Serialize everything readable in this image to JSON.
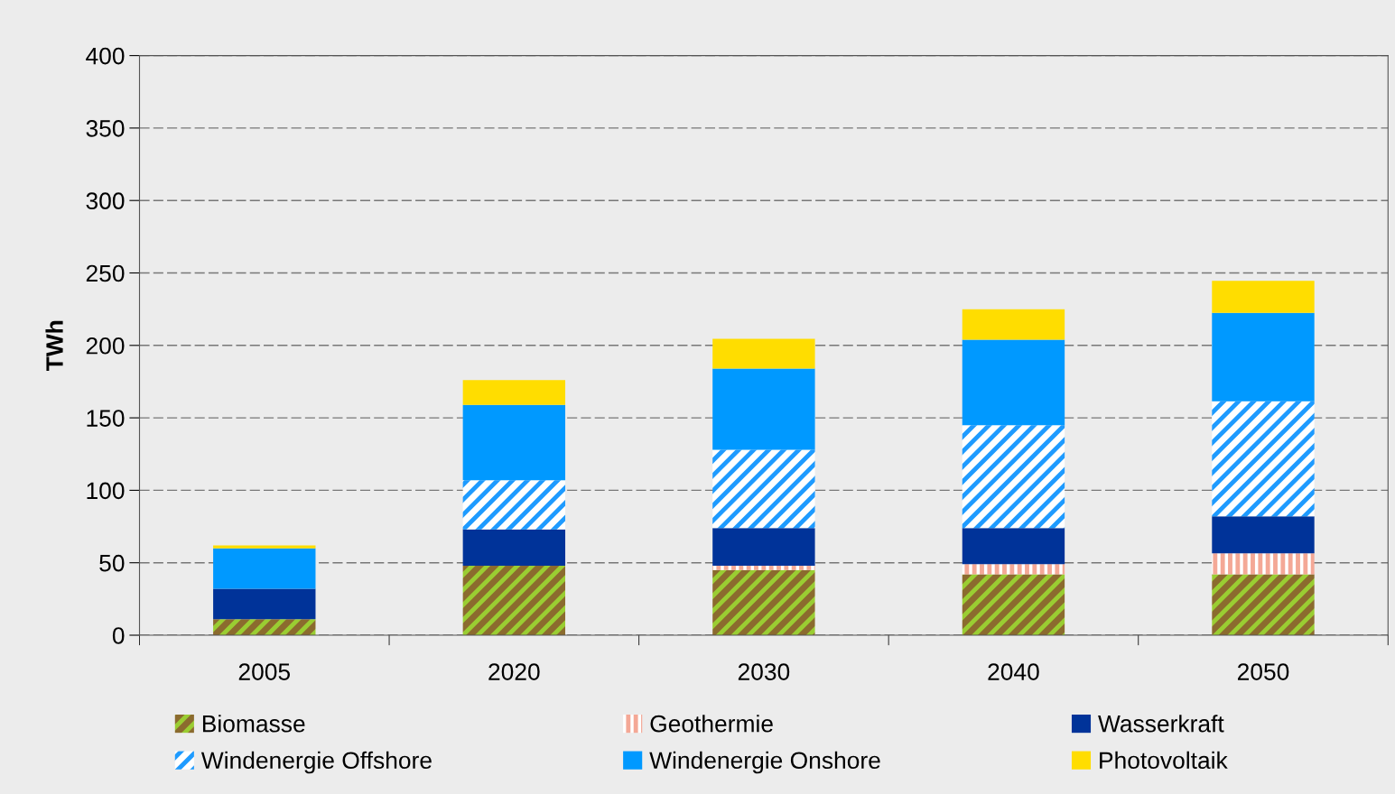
{
  "chart_data": {
    "type": "bar",
    "stacked": true,
    "ylabel": "TWh",
    "categories": [
      "2005",
      "2020",
      "2030",
      "2040",
      "2050"
    ],
    "series": [
      {
        "name": "Biomasse",
        "color": "#8b6b2e",
        "values": [
          11,
          48,
          45,
          42,
          42
        ]
      },
      {
        "name": "Geothermie",
        "color": "#f4a896",
        "values": [
          0,
          0,
          3,
          7,
          14.5
        ]
      },
      {
        "name": "Wasserkraft",
        "color": "#003399",
        "values": [
          21,
          25,
          26,
          25,
          25.5
        ]
      },
      {
        "name": "Windenergie Offshore",
        "color": "#1e9bff",
        "values": [
          0,
          34,
          54,
          71,
          79.5
        ]
      },
      {
        "name": "Windenergie Onshore",
        "color": "#0099ff",
        "values": [
          28,
          52,
          56,
          59,
          61
        ]
      },
      {
        "name": "Photovoltaik",
        "color": "#ffdd00",
        "values": [
          2,
          17,
          20.5,
          21,
          22
        ]
      }
    ],
    "ylim": [
      0,
      400
    ],
    "yticks": [
      0,
      50,
      100,
      150,
      200,
      250,
      300,
      350,
      400
    ],
    "grid": "y",
    "legend": "bottom"
  }
}
